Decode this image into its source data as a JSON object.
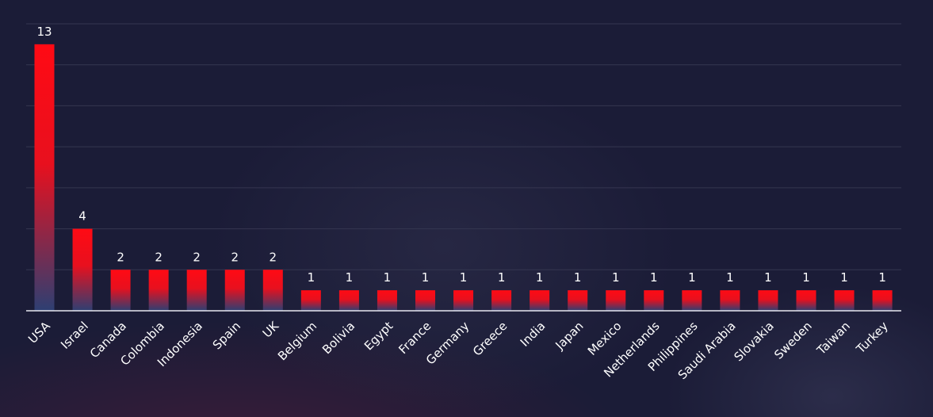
{
  "chart_data": {
    "type": "bar",
    "categories": [
      "USA",
      "Israel",
      "Canada",
      "Colombia",
      "Indonesia",
      "Spain",
      "UK",
      "Belgium",
      "Bolivia",
      "Egypt",
      "France",
      "Germany",
      "Greece",
      "India",
      "Japan",
      "Mexico",
      "Netherlands",
      "Philippines",
      "Saudi Arabia",
      "Slovakia",
      "Sweden",
      "Taiwan",
      "Turkey"
    ],
    "values": [
      13,
      4,
      2,
      2,
      2,
      2,
      2,
      1,
      1,
      1,
      1,
      1,
      1,
      1,
      1,
      1,
      1,
      1,
      1,
      1,
      1,
      1,
      1
    ],
    "ylim": [
      0,
      14
    ],
    "grid": true,
    "data_labels": true,
    "bar_gradient": {
      "top": "#ff0a14",
      "bottom": "#2e3f72"
    }
  }
}
